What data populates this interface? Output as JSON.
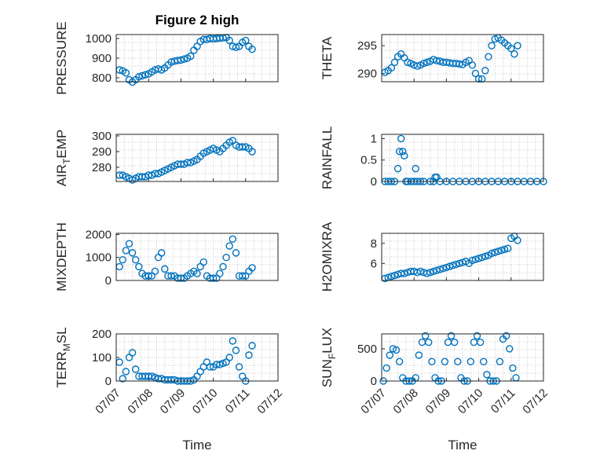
{
  "title": "Figure 2 high",
  "marker_color": "#0072BD",
  "x_tick_labels": [
    "07/07",
    "07/08",
    "07/09",
    "07/10",
    "07/11",
    "07/12"
  ],
  "x_axis_label": "Time",
  "chart_data": [
    {
      "type": "scatter",
      "ylabel": "PRESSURE",
      "ylabel_parts": [
        "PRESSURE"
      ],
      "xlim": [
        0,
        5
      ],
      "ylim": [
        780,
        1020
      ],
      "yticks": [
        800,
        900,
        1000
      ],
      "ytick_labels": [
        "800",
        "900",
        "1000"
      ],
      "grid": true,
      "show_x_tick_labels": false,
      "x": [
        0.1,
        0.2,
        0.3,
        0.4,
        0.5,
        0.6,
        0.7,
        0.8,
        0.9,
        1.0,
        1.1,
        1.2,
        1.3,
        1.4,
        1.5,
        1.6,
        1.7,
        1.8,
        1.9,
        2.0,
        2.1,
        2.2,
        2.3,
        2.4,
        2.5,
        2.6,
        2.7,
        2.8,
        2.9,
        3.0,
        3.1,
        3.2,
        3.3,
        3.4,
        3.5,
        3.6,
        3.7,
        3.8,
        3.9,
        4.0,
        4.1,
        4.2
      ],
      "y": [
        840,
        835,
        825,
        790,
        778,
        790,
        805,
        810,
        815,
        820,
        830,
        840,
        845,
        840,
        850,
        865,
        880,
        885,
        888,
        890,
        895,
        900,
        910,
        940,
        960,
        985,
        995,
        995,
        1000,
        998,
        1000,
        1002,
        1003,
        1005,
        990,
        960,
        955,
        960,
        980,
        990,
        960,
        945
      ]
    },
    {
      "type": "scatter",
      "ylabel": "THETA",
      "ylabel_parts": [
        "THETA"
      ],
      "xlim": [
        0,
        5
      ],
      "ylim": [
        288.5,
        297
      ],
      "yticks": [
        290,
        295
      ],
      "ytick_labels": [
        "290",
        "295"
      ],
      "grid": true,
      "show_x_tick_labels": false,
      "x": [
        0.1,
        0.2,
        0.3,
        0.4,
        0.5,
        0.6,
        0.7,
        0.8,
        0.9,
        1.0,
        1.1,
        1.2,
        1.3,
        1.4,
        1.5,
        1.6,
        1.7,
        1.8,
        1.9,
        2.0,
        2.1,
        2.2,
        2.3,
        2.4,
        2.5,
        2.6,
        2.7,
        2.8,
        2.9,
        3.0,
        3.1,
        3.2,
        3.3,
        3.4,
        3.5,
        3.6,
        3.7,
        3.8,
        3.9,
        4.0,
        4.1,
        4.2
      ],
      "y": [
        290.2,
        290.5,
        291.0,
        292.0,
        293.0,
        293.5,
        292.8,
        292.0,
        291.8,
        291.5,
        291.3,
        291.5,
        291.8,
        292.0,
        292.2,
        292.5,
        292.3,
        292.2,
        292.0,
        292.0,
        291.9,
        291.8,
        291.8,
        291.7,
        291.6,
        292.0,
        292.3,
        291.5,
        290.0,
        289.0,
        289.0,
        290.5,
        293.0,
        295.0,
        296.2,
        296.4,
        296.0,
        295.5,
        295.0,
        294.5,
        293.5,
        295.0
      ]
    },
    {
      "type": "scatter",
      "ylabel": "AIR_TEMP",
      "ylabel_parts": [
        "AIR",
        "T",
        "EMP"
      ],
      "xlim": [
        0,
        5
      ],
      "ylim": [
        271,
        301
      ],
      "yticks": [
        280,
        290,
        300
      ],
      "ytick_labels": [
        "280",
        "290",
        "300"
      ],
      "grid": true,
      "show_x_tick_labels": false,
      "x": [
        0.1,
        0.2,
        0.3,
        0.4,
        0.5,
        0.6,
        0.7,
        0.8,
        0.9,
        1.0,
        1.1,
        1.2,
        1.3,
        1.4,
        1.5,
        1.6,
        1.7,
        1.8,
        1.9,
        2.0,
        2.1,
        2.2,
        2.3,
        2.4,
        2.5,
        2.6,
        2.7,
        2.8,
        2.9,
        3.0,
        3.1,
        3.2,
        3.3,
        3.4,
        3.5,
        3.6,
        3.7,
        3.8,
        3.9,
        4.0,
        4.1,
        4.2
      ],
      "y": [
        275,
        275,
        274,
        273,
        272,
        273,
        274,
        274,
        274,
        275,
        275,
        276,
        276,
        277,
        278,
        279,
        280,
        281,
        282,
        282,
        282,
        283,
        283,
        284,
        285,
        287,
        289,
        290,
        291,
        292,
        291,
        290,
        292,
        294,
        296,
        297,
        294,
        293,
        293,
        293,
        292,
        290
      ]
    },
    {
      "type": "scatter",
      "ylabel": "RAINFALL",
      "ylabel_parts": [
        "RAINFALL"
      ],
      "xlim": [
        0,
        5
      ],
      "ylim": [
        0,
        1.1
      ],
      "yticks": [
        0,
        0.5,
        1
      ],
      "ytick_labels": [
        "0",
        "0.5",
        "1"
      ],
      "grid": true,
      "show_x_tick_labels": false,
      "x": [
        0.1,
        0.2,
        0.3,
        0.4,
        0.5,
        0.55,
        0.6,
        0.65,
        0.7,
        0.75,
        0.8,
        0.9,
        1.0,
        1.05,
        1.1,
        1.2,
        1.3,
        1.5,
        1.6,
        1.65,
        1.7,
        1.8,
        2.0,
        2.2,
        2.4,
        2.6,
        2.8,
        3.0,
        3.2,
        3.4,
        3.6,
        3.8,
        4.0,
        4.2,
        4.4,
        4.6,
        4.8,
        5.0
      ],
      "y": [
        0,
        0,
        0,
        0,
        0.3,
        0.7,
        1.0,
        0.7,
        0.6,
        0,
        0,
        0,
        0,
        0.3,
        0,
        0,
        0,
        0,
        0,
        0.1,
        0.1,
        0,
        0,
        0,
        0,
        0,
        0,
        0,
        0,
        0,
        0,
        0,
        0,
        0,
        0,
        0,
        0,
        0
      ]
    },
    {
      "type": "scatter",
      "ylabel": "MIXDEPTH",
      "ylabel_parts": [
        "MIXDEPTH"
      ],
      "xlim": [
        0,
        5
      ],
      "ylim": [
        0,
        2050
      ],
      "yticks": [
        0,
        1000,
        2000
      ],
      "ytick_labels": [
        "0",
        "1000",
        "2000"
      ],
      "grid": true,
      "show_x_tick_labels": false,
      "x": [
        0.1,
        0.2,
        0.3,
        0.4,
        0.5,
        0.6,
        0.7,
        0.8,
        0.9,
        1.0,
        1.1,
        1.2,
        1.3,
        1.4,
        1.5,
        1.6,
        1.7,
        1.8,
        1.9,
        2.0,
        2.1,
        2.2,
        2.3,
        2.4,
        2.5,
        2.6,
        2.7,
        2.8,
        2.9,
        3.0,
        3.1,
        3.2,
        3.3,
        3.4,
        3.5,
        3.6,
        3.7,
        3.8,
        3.9,
        4.0,
        4.1,
        4.2
      ],
      "y": [
        600,
        900,
        1300,
        1600,
        1200,
        900,
        600,
        300,
        200,
        200,
        200,
        400,
        1000,
        1200,
        500,
        200,
        200,
        200,
        100,
        100,
        100,
        200,
        300,
        400,
        300,
        600,
        800,
        200,
        100,
        100,
        100,
        300,
        600,
        1000,
        1500,
        1800,
        1200,
        200,
        200,
        200,
        400,
        550
      ]
    },
    {
      "type": "scatter",
      "ylabel": "H2OMIXRA",
      "ylabel_parts": [
        "H2OMIXRA"
      ],
      "xlim": [
        0,
        5
      ],
      "ylim": [
        4.3,
        9
      ],
      "yticks": [
        6,
        8
      ],
      "ytick_labels": [
        "6",
        "8"
      ],
      "grid": true,
      "show_x_tick_labels": false,
      "x": [
        0.1,
        0.2,
        0.3,
        0.4,
        0.5,
        0.6,
        0.7,
        0.8,
        0.9,
        1.0,
        1.1,
        1.2,
        1.3,
        1.4,
        1.5,
        1.6,
        1.7,
        1.8,
        1.9,
        2.0,
        2.1,
        2.2,
        2.3,
        2.4,
        2.5,
        2.6,
        2.7,
        2.8,
        2.9,
        3.0,
        3.1,
        3.2,
        3.3,
        3.4,
        3.5,
        3.6,
        3.7,
        3.8,
        3.9,
        4.0,
        4.1,
        4.2
      ],
      "y": [
        4.5,
        4.6,
        4.7,
        4.8,
        4.9,
        5.0,
        5.0,
        5.1,
        5.2,
        5.2,
        5.1,
        5.2,
        5.1,
        5.0,
        5.1,
        5.2,
        5.3,
        5.4,
        5.5,
        5.6,
        5.7,
        5.8,
        5.9,
        6.0,
        6.1,
        6.2,
        6.0,
        6.3,
        6.4,
        6.5,
        6.6,
        6.7,
        6.8,
        7.0,
        7.1,
        7.2,
        7.3,
        7.4,
        7.5,
        8.5,
        8.7,
        8.3
      ]
    },
    {
      "type": "scatter",
      "ylabel": "TERR_MSL",
      "ylabel_parts": [
        "TERR",
        "M",
        "SL"
      ],
      "xlim": [
        0,
        5
      ],
      "ylim": [
        0,
        200
      ],
      "yticks": [
        0,
        100,
        200
      ],
      "ytick_labels": [
        "0",
        "100",
        "200"
      ],
      "grid": true,
      "show_x_tick_labels": true,
      "x": [
        0.1,
        0.2,
        0.3,
        0.4,
        0.5,
        0.6,
        0.7,
        0.8,
        0.9,
        1.0,
        1.1,
        1.2,
        1.3,
        1.4,
        1.5,
        1.6,
        1.7,
        1.8,
        1.9,
        2.0,
        2.1,
        2.2,
        2.3,
        2.4,
        2.5,
        2.6,
        2.7,
        2.8,
        2.9,
        3.0,
        3.1,
        3.2,
        3.3,
        3.4,
        3.5,
        3.6,
        3.7,
        3.8,
        3.9,
        4.0,
        4.1,
        4.2
      ],
      "y": [
        80,
        10,
        40,
        100,
        120,
        50,
        20,
        20,
        20,
        20,
        20,
        15,
        10,
        10,
        5,
        5,
        5,
        5,
        0,
        0,
        0,
        0,
        0,
        5,
        20,
        40,
        60,
        80,
        60,
        60,
        70,
        70,
        75,
        80,
        100,
        170,
        130,
        60,
        20,
        0,
        110,
        150
      ]
    },
    {
      "type": "scatter",
      "ylabel": "SUN_FLUX",
      "ylabel_parts": [
        "SUN",
        "F",
        "LUX"
      ],
      "xlim": [
        0,
        5
      ],
      "ylim": [
        0,
        730
      ],
      "yticks": [
        0,
        500
      ],
      "ytick_labels": [
        "0",
        "500"
      ],
      "grid": true,
      "show_x_tick_labels": true,
      "x": [
        0.05,
        0.15,
        0.25,
        0.35,
        0.45,
        0.55,
        0.65,
        0.75,
        0.85,
        0.95,
        1.05,
        1.15,
        1.25,
        1.35,
        1.45,
        1.55,
        1.65,
        1.75,
        1.85,
        1.95,
        2.05,
        2.15,
        2.25,
        2.35,
        2.45,
        2.55,
        2.65,
        2.75,
        2.85,
        2.95,
        3.05,
        3.15,
        3.25,
        3.35,
        3.45,
        3.55,
        3.65,
        3.75,
        3.85,
        3.95,
        4.05,
        4.15
      ],
      "y": [
        0,
        200,
        400,
        500,
        480,
        300,
        50,
        0,
        0,
        0,
        50,
        400,
        600,
        700,
        600,
        300,
        50,
        0,
        0,
        300,
        600,
        700,
        600,
        300,
        50,
        0,
        0,
        300,
        600,
        700,
        600,
        300,
        100,
        0,
        0,
        0,
        300,
        650,
        700,
        500,
        200,
        50
      ]
    }
  ]
}
